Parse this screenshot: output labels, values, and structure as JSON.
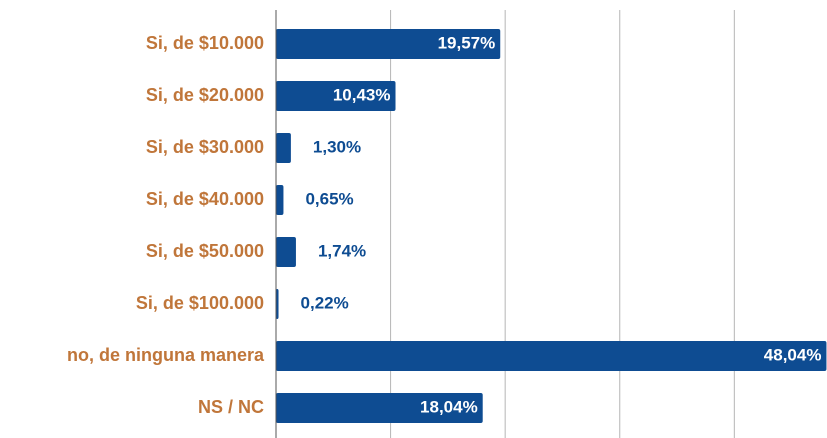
{
  "chart_data": {
    "type": "bar",
    "orientation": "horizontal",
    "categories": [
      "Si, de $10.000",
      "Si, de $20.000",
      "Si, de $30.000",
      "Si, de $40.000",
      "Si, de $50.000",
      "Si, de $100.000",
      "no, de ninguna manera",
      "NS / NC"
    ],
    "values": [
      19.57,
      10.43,
      1.3,
      0.65,
      1.74,
      0.22,
      48.04,
      18.04
    ],
    "value_labels": [
      "19,57%",
      "10,43%",
      "1,30%",
      "0,65%",
      "1,74%",
      "0,22%",
      "48,04%",
      "18,04%"
    ],
    "color": "#0e4c92",
    "xlim": [
      0,
      48
    ],
    "xticks": [
      10,
      20,
      30,
      40
    ],
    "grid": true
  }
}
